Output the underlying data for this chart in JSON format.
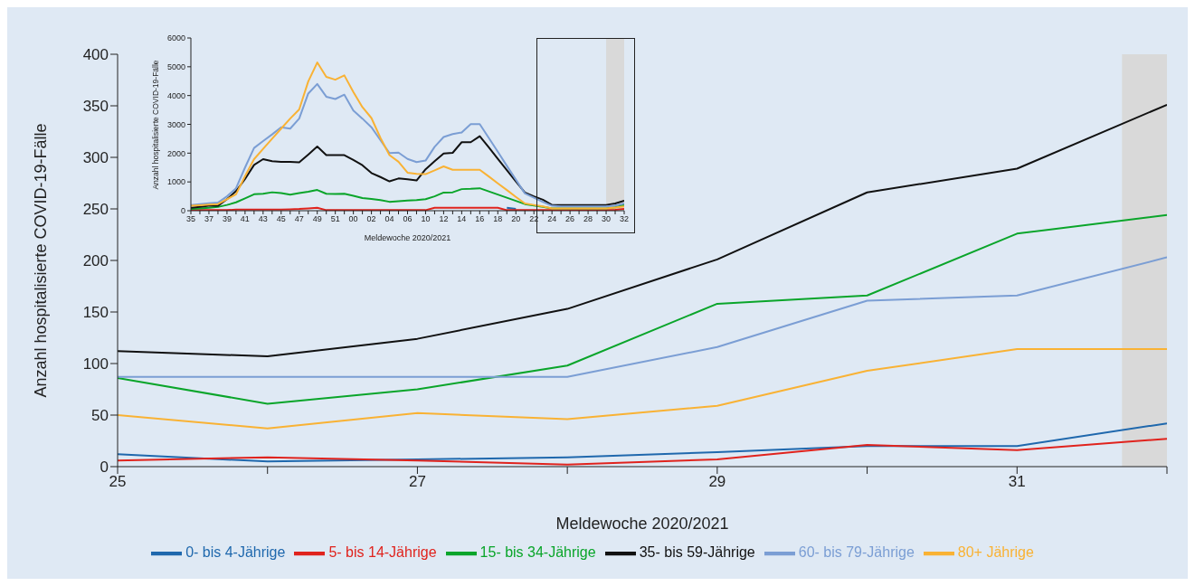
{
  "chart_data": [
    {
      "type": "line",
      "xlabel": "Meldewoche 2020/2021",
      "ylabel": "Anzahl hospitalisierte COVID-19-Fälle",
      "x": [
        25,
        26,
        27,
        28,
        29,
        30,
        31,
        32
      ],
      "xlim": [
        25,
        32
      ],
      "xticks": [
        25,
        {
          "value": 26,
          "label": null
        },
        27,
        {
          "value": 28,
          "label": null
        },
        29,
        {
          "value": 30,
          "label": null
        },
        31,
        {
          "value": 32,
          "label": null
        }
      ],
      "ylim": [
        0,
        400
      ],
      "yticks": [
        0,
        50,
        100,
        150,
        200,
        250,
        300,
        350,
        400
      ],
      "grid": false,
      "legend": "bottom",
      "line_style": "solid",
      "bands": [
        {
          "axis": "x",
          "from": 31.7,
          "to": 32,
          "color": "#d9d9d9"
        }
      ],
      "series": [
        {
          "name": "0- bis 4-Jährige",
          "color": "#1f68ad",
          "values": [
            12,
            5,
            7,
            9,
            14,
            20,
            20,
            42
          ]
        },
        {
          "name": "5- bis 14-Jährige",
          "color": "#e0231d",
          "values": [
            6,
            9,
            6,
            2,
            7,
            21,
            16,
            27
          ]
        },
        {
          "name": "15- bis  34-Jährige",
          "color": "#0aa52a",
          "values": [
            86,
            61,
            75,
            98,
            158,
            166,
            226,
            244
          ]
        },
        {
          "name": "35- bis 59-Jährige",
          "color": "#111111",
          "values": [
            112,
            107,
            124,
            153,
            201,
            266,
            289,
            351
          ]
        },
        {
          "name": "60- bis 79-Jährige",
          "color": "#7b9ed4",
          "values": [
            87,
            87,
            87,
            87,
            116,
            161,
            166,
            203
          ]
        },
        {
          "name": "80+ Jährige",
          "color": "#f9b234",
          "values": [
            50,
            37,
            52,
            46,
            59,
            93,
            114,
            114
          ]
        }
      ]
    },
    {
      "type": "line",
      "xlabel": "Meldewoche 2020/2021",
      "ylabel": "Anzahl hospitalisierte COVID-19-Fälle",
      "categories": [
        "35",
        null,
        "37",
        null,
        "39",
        null,
        "41",
        null,
        "43",
        null,
        "45",
        null,
        "47",
        null,
        "49",
        null,
        "51",
        null,
        "00",
        null,
        "02",
        null,
        "04",
        null,
        "06",
        null,
        "10",
        null,
        "12",
        null,
        "14",
        null,
        "16",
        null,
        "18",
        null,
        "20",
        null,
        "22",
        null,
        "24",
        null,
        "26",
        null,
        "28",
        null,
        "30",
        null,
        "32"
      ],
      "ylim": [
        0,
        6000
      ],
      "yticks": [
        0,
        1000,
        2000,
        3000,
        4000,
        5000,
        6000
      ],
      "grid": false,
      "line_style": "solid",
      "bands": [
        {
          "axis": "x",
          "from": "30",
          "to": "32",
          "color": "#d9d9d9"
        }
      ],
      "series": [
        {
          "color": "#1f68ad",
          "values": [
            null,
            null,
            null,
            null,
            null,
            null,
            null,
            null,
            null,
            null,
            null,
            null,
            null,
            null,
            null,
            null,
            null,
            null,
            null,
            null,
            null,
            null,
            null,
            null,
            null,
            null,
            null,
            null,
            null,
            null,
            null,
            null,
            null,
            null,
            null,
            100,
            60,
            null,
            null,
            null,
            null,
            null,
            null,
            null,
            null,
            null,
            null,
            null,
            null
          ]
        },
        {
          "color": "#e0231d",
          "values": [
            20,
            20,
            20,
            20,
            20,
            40,
            40,
            40,
            40,
            40,
            40,
            50,
            60,
            80,
            100,
            20,
            20,
            20,
            20,
            20,
            20,
            20,
            20,
            20,
            20,
            20,
            20,
            100,
            100,
            100,
            100,
            100,
            100,
            100,
            100,
            20,
            20,
            20,
            20,
            20,
            20,
            20,
            20,
            20,
            20,
            20,
            20,
            30,
            60
          ]
        },
        {
          "color": "#0aa52a",
          "values": [
            60,
            80,
            100,
            130,
            200,
            290,
            430,
            570,
            590,
            640,
            610,
            560,
            610,
            660,
            720,
            590,
            580,
            590,
            520,
            440,
            410,
            370,
            310,
            330,
            350,
            370,
            400,
            500,
            630,
            640,
            750,
            760,
            780,
            670,
            560,
            450,
            340,
            230,
            180,
            130,
            80,
            80,
            80,
            80,
            80,
            80,
            80,
            120,
            200
          ]
        },
        {
          "color": "#111111",
          "values": [
            100,
            130,
            170,
            170,
            400,
            680,
            1100,
            1590,
            1790,
            1720,
            1700,
            1700,
            1680,
            1950,
            2230,
            1930,
            1930,
            1930,
            1760,
            1580,
            1310,
            1170,
            1020,
            1120,
            1090,
            1050,
            1440,
            1720,
            1990,
            2010,
            2380,
            2380,
            2590,
            2200,
            1800,
            1410,
            1020,
            630,
            500,
            380,
            200,
            200,
            200,
            200,
            200,
            200,
            200,
            250,
            350
          ]
        },
        {
          "color": "#7b9ed4",
          "values": [
            200,
            230,
            260,
            280,
            500,
            780,
            1500,
            2180,
            2420,
            2650,
            2900,
            2850,
            3200,
            4070,
            4400,
            3960,
            3880,
            4030,
            3480,
            3200,
            2900,
            2450,
            2000,
            2020,
            1800,
            1690,
            1740,
            2220,
            2560,
            2660,
            2720,
            3010,
            3010,
            2530,
            2050,
            1560,
            1080,
            600,
            450,
            300,
            170,
            150,
            150,
            150,
            150,
            150,
            150,
            180,
            250
          ]
        },
        {
          "color": "#f9b234",
          "values": [
            170,
            190,
            210,
            230,
            400,
            570,
            1200,
            1790,
            2150,
            2500,
            2850,
            3200,
            3520,
            4490,
            5150,
            4650,
            4550,
            4700,
            4120,
            3600,
            3220,
            2530,
            1930,
            1700,
            1320,
            1280,
            1270,
            1400,
            1540,
            1420,
            1420,
            1420,
            1420,
            1190,
            950,
            720,
            480,
            250,
            200,
            150,
            80,
            80,
            80,
            80,
            80,
            80,
            80,
            110,
            150
          ]
        }
      ]
    }
  ]
}
